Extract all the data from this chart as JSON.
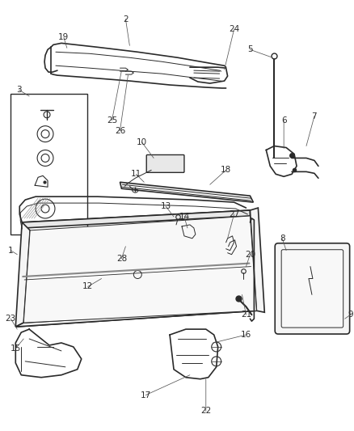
{
  "bg_color": "#ffffff",
  "line_color": "#2a2a2a",
  "light_gray": "#aaaaaa",
  "fill_gray": "#e8e8e8",
  "fill_light": "#f5f5f5",
  "fig_width": 4.38,
  "fig_height": 5.33,
  "dpi": 100
}
